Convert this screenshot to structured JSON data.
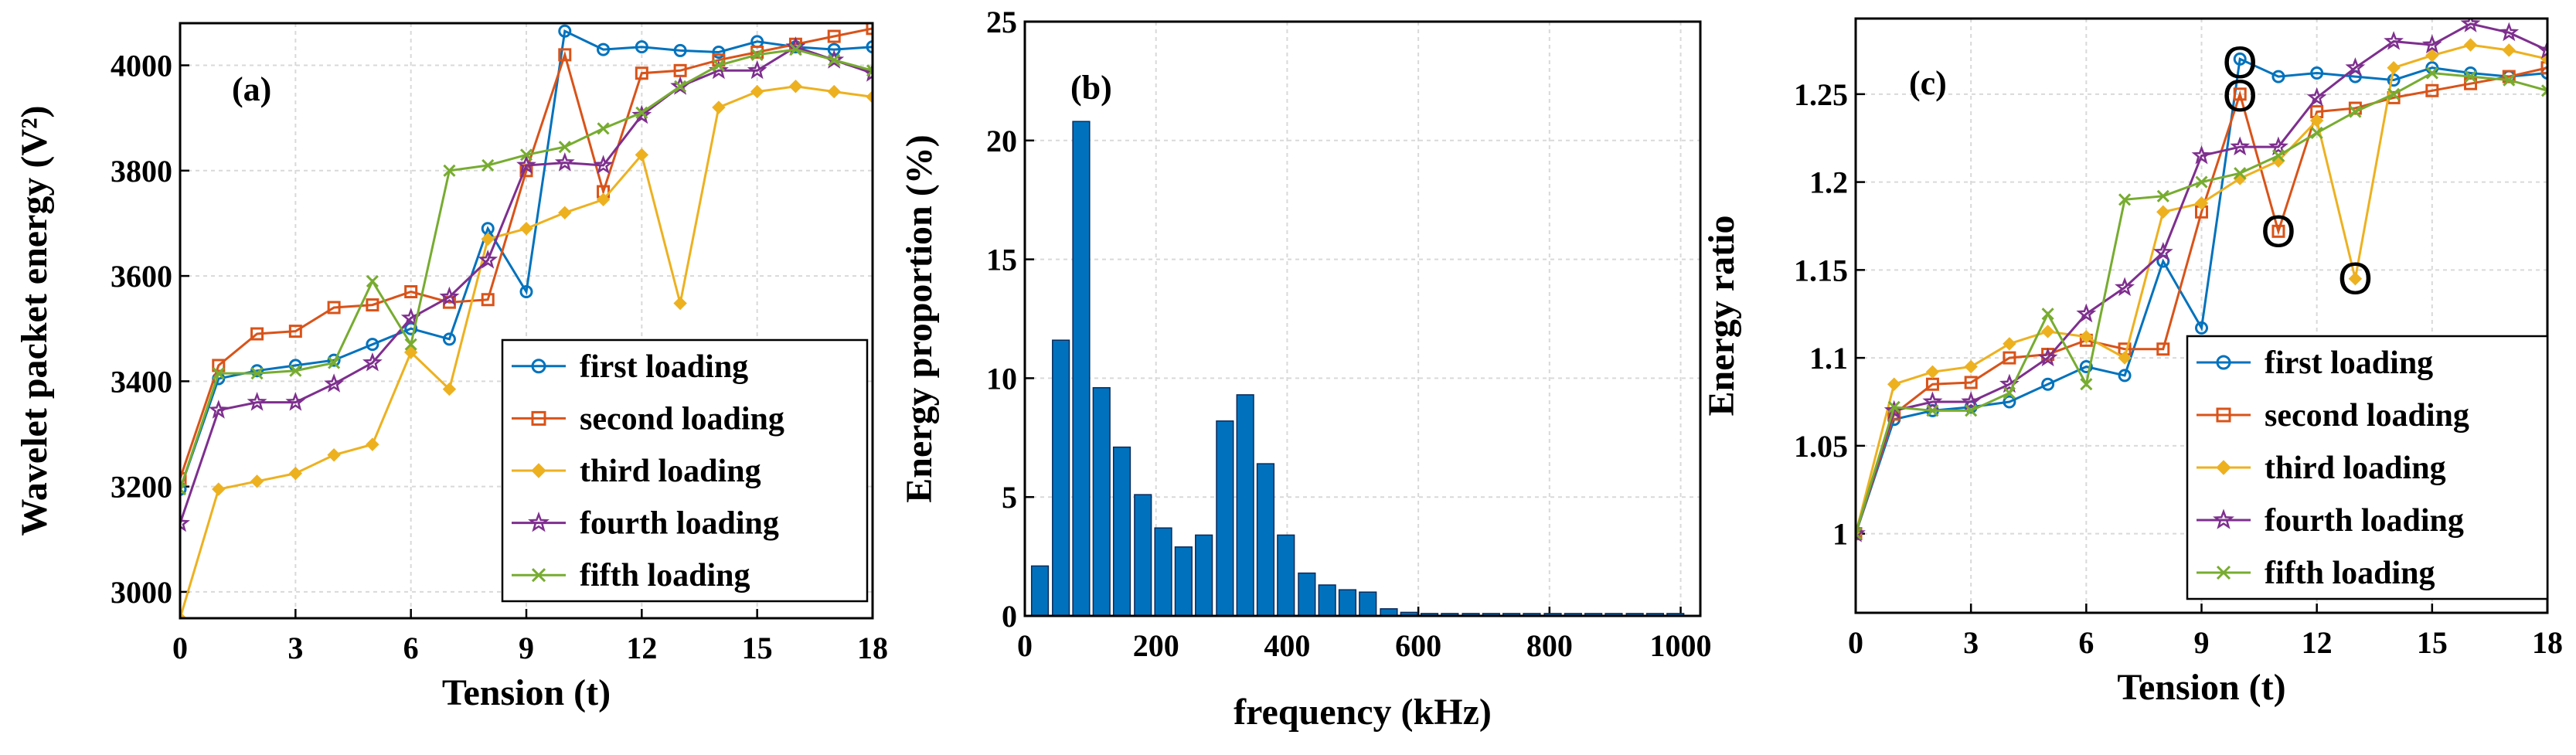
{
  "chart_data": [
    {
      "panel": "(a)",
      "type": "line",
      "xlabel": "Tension (t)",
      "ylabel": "Wavelet packet energy (V²)",
      "xlim": [
        0,
        18
      ],
      "ylim": [
        2950,
        4080
      ],
      "xticks": [
        "0",
        "3",
        "6",
        "9",
        "12",
        "15",
        "18"
      ],
      "yticks": [
        "3000",
        "3200",
        "3400",
        "3600",
        "3800",
        "4000"
      ],
      "grid": true,
      "legend_position": "lower-right",
      "x": [
        0,
        1,
        2,
        3,
        4,
        5,
        6,
        7,
        8,
        9,
        10,
        11,
        12,
        13,
        14,
        15,
        16,
        17,
        18
      ],
      "series": [
        {
          "name": "first loading",
          "color": "#0072bd",
          "marker": "circle",
          "values": [
            3195,
            3405,
            3420,
            3430,
            3440,
            3470,
            3500,
            3480,
            3690,
            3570,
            4065,
            4030,
            4035,
            4028,
            4025,
            4045,
            4035,
            4030,
            4035
          ]
        },
        {
          "name": "second loading",
          "color": "#d95319",
          "marker": "square",
          "values": [
            3215,
            3430,
            3490,
            3495,
            3540,
            3545,
            3570,
            3550,
            3555,
            3800,
            4020,
            3760,
            3985,
            3990,
            4010,
            4025,
            4040,
            4055,
            4070
          ]
        },
        {
          "name": "third loading",
          "color": "#edb120",
          "marker": "diamond",
          "values": [
            2950,
            3195,
            3210,
            3225,
            3260,
            3280,
            3455,
            3385,
            3670,
            3690,
            3720,
            3745,
            3830,
            3548,
            3920,
            3950,
            3960,
            3950,
            3940
          ]
        },
        {
          "name": "fourth loading",
          "color": "#7e2f8e",
          "marker": "star",
          "values": [
            3130,
            3345,
            3360,
            3360,
            3395,
            3435,
            3520,
            3560,
            3630,
            3810,
            3815,
            3810,
            3905,
            3960,
            3990,
            3990,
            4035,
            4010,
            3985
          ]
        },
        {
          "name": "fifth loading",
          "color": "#77ac30",
          "marker": "x",
          "values": [
            3195,
            3415,
            3415,
            3420,
            3435,
            3590,
            3470,
            3800,
            3810,
            3830,
            3845,
            3880,
            3910,
            3960,
            4000,
            4020,
            4030,
            4010,
            3990
          ]
        }
      ]
    },
    {
      "panel": "(b)",
      "type": "bar",
      "xlabel": "frequency (kHz)",
      "ylabel": "Energy proportion (%)",
      "xlim": [
        0,
        1030
      ],
      "ylim": [
        0,
        25
      ],
      "xticks": [
        "0",
        "200",
        "400",
        "600",
        "800",
        "1000"
      ],
      "yticks": [
        "0",
        "5",
        "10",
        "15",
        "20",
        "25"
      ],
      "grid": true,
      "bar_color": "#0072bd",
      "x": [
        23,
        55,
        86,
        117,
        148,
        180,
        211,
        242,
        273,
        305,
        336,
        367,
        398,
        430,
        461,
        492,
        523,
        555,
        586,
        617,
        648,
        680,
        711,
        742,
        773,
        805,
        836,
        867,
        898,
        930,
        961,
        992
      ],
      "values": [
        2.1,
        11.6,
        20.8,
        9.6,
        7.1,
        5.1,
        3.7,
        2.9,
        3.4,
        8.2,
        9.3,
        6.4,
        3.4,
        1.8,
        1.3,
        1.1,
        1.0,
        0.3,
        0.15,
        0.1,
        0.1,
        0.1,
        0.1,
        0.1,
        0.1,
        0.1,
        0.1,
        0.1,
        0.1,
        0.1,
        0.1,
        0.1
      ]
    },
    {
      "panel": "(c)",
      "type": "line",
      "xlabel": "Tension (t)",
      "ylabel": "Energy ratio",
      "xlim": [
        0,
        18
      ],
      "ylim": [
        0.955,
        1.293
      ],
      "xticks": [
        "0",
        "3",
        "6",
        "9",
        "12",
        "15",
        "18"
      ],
      "yticks": [
        "1",
        "1.05",
        "1.1",
        "1.15",
        "1.2",
        "1.25"
      ],
      "grid": true,
      "legend_position": "lower-right",
      "annotations": [
        "O",
        "O",
        "O",
        "O"
      ],
      "annotation_points": [
        [
          10,
          1.268
        ],
        [
          10,
          1.249
        ],
        [
          11,
          1.172
        ],
        [
          13,
          1.145
        ]
      ],
      "x": [
        0,
        1,
        2,
        3,
        4,
        5,
        6,
        7,
        8,
        9,
        10,
        11,
        12,
        13,
        14,
        15,
        16,
        17,
        18
      ],
      "series": [
        {
          "name": "first loading",
          "color": "#0072bd",
          "marker": "circle",
          "values": [
            1.0,
            1.065,
            1.07,
            1.072,
            1.075,
            1.085,
            1.095,
            1.09,
            1.155,
            1.117,
            1.27,
            1.26,
            1.262,
            1.26,
            1.258,
            1.265,
            1.262,
            1.26,
            1.262
          ]
        },
        {
          "name": "second loading",
          "color": "#d95319",
          "marker": "square",
          "values": [
            1.0,
            1.068,
            1.085,
            1.086,
            1.1,
            1.102,
            1.11,
            1.105,
            1.105,
            1.183,
            1.25,
            1.172,
            1.24,
            1.242,
            1.248,
            1.252,
            1.256,
            1.26,
            1.265
          ]
        },
        {
          "name": "third loading",
          "color": "#edb120",
          "marker": "diamond",
          "values": [
            1.0,
            1.085,
            1.092,
            1.095,
            1.108,
            1.115,
            1.112,
            1.1,
            1.183,
            1.188,
            1.202,
            1.212,
            1.235,
            1.145,
            1.265,
            1.272,
            1.278,
            1.275,
            1.27
          ]
        },
        {
          "name": "fourth loading",
          "color": "#7e2f8e",
          "marker": "star",
          "values": [
            1.0,
            1.07,
            1.075,
            1.075,
            1.085,
            1.1,
            1.125,
            1.14,
            1.16,
            1.215,
            1.22,
            1.22,
            1.248,
            1.265,
            1.28,
            1.278,
            1.29,
            1.285,
            1.275
          ]
        },
        {
          "name": "fifth loading",
          "color": "#77ac30",
          "marker": "x",
          "values": [
            1.0,
            1.072,
            1.07,
            1.07,
            1.08,
            1.125,
            1.085,
            1.19,
            1.192,
            1.2,
            1.205,
            1.215,
            1.228,
            1.24,
            1.25,
            1.262,
            1.26,
            1.258,
            1.252
          ]
        }
      ]
    }
  ]
}
